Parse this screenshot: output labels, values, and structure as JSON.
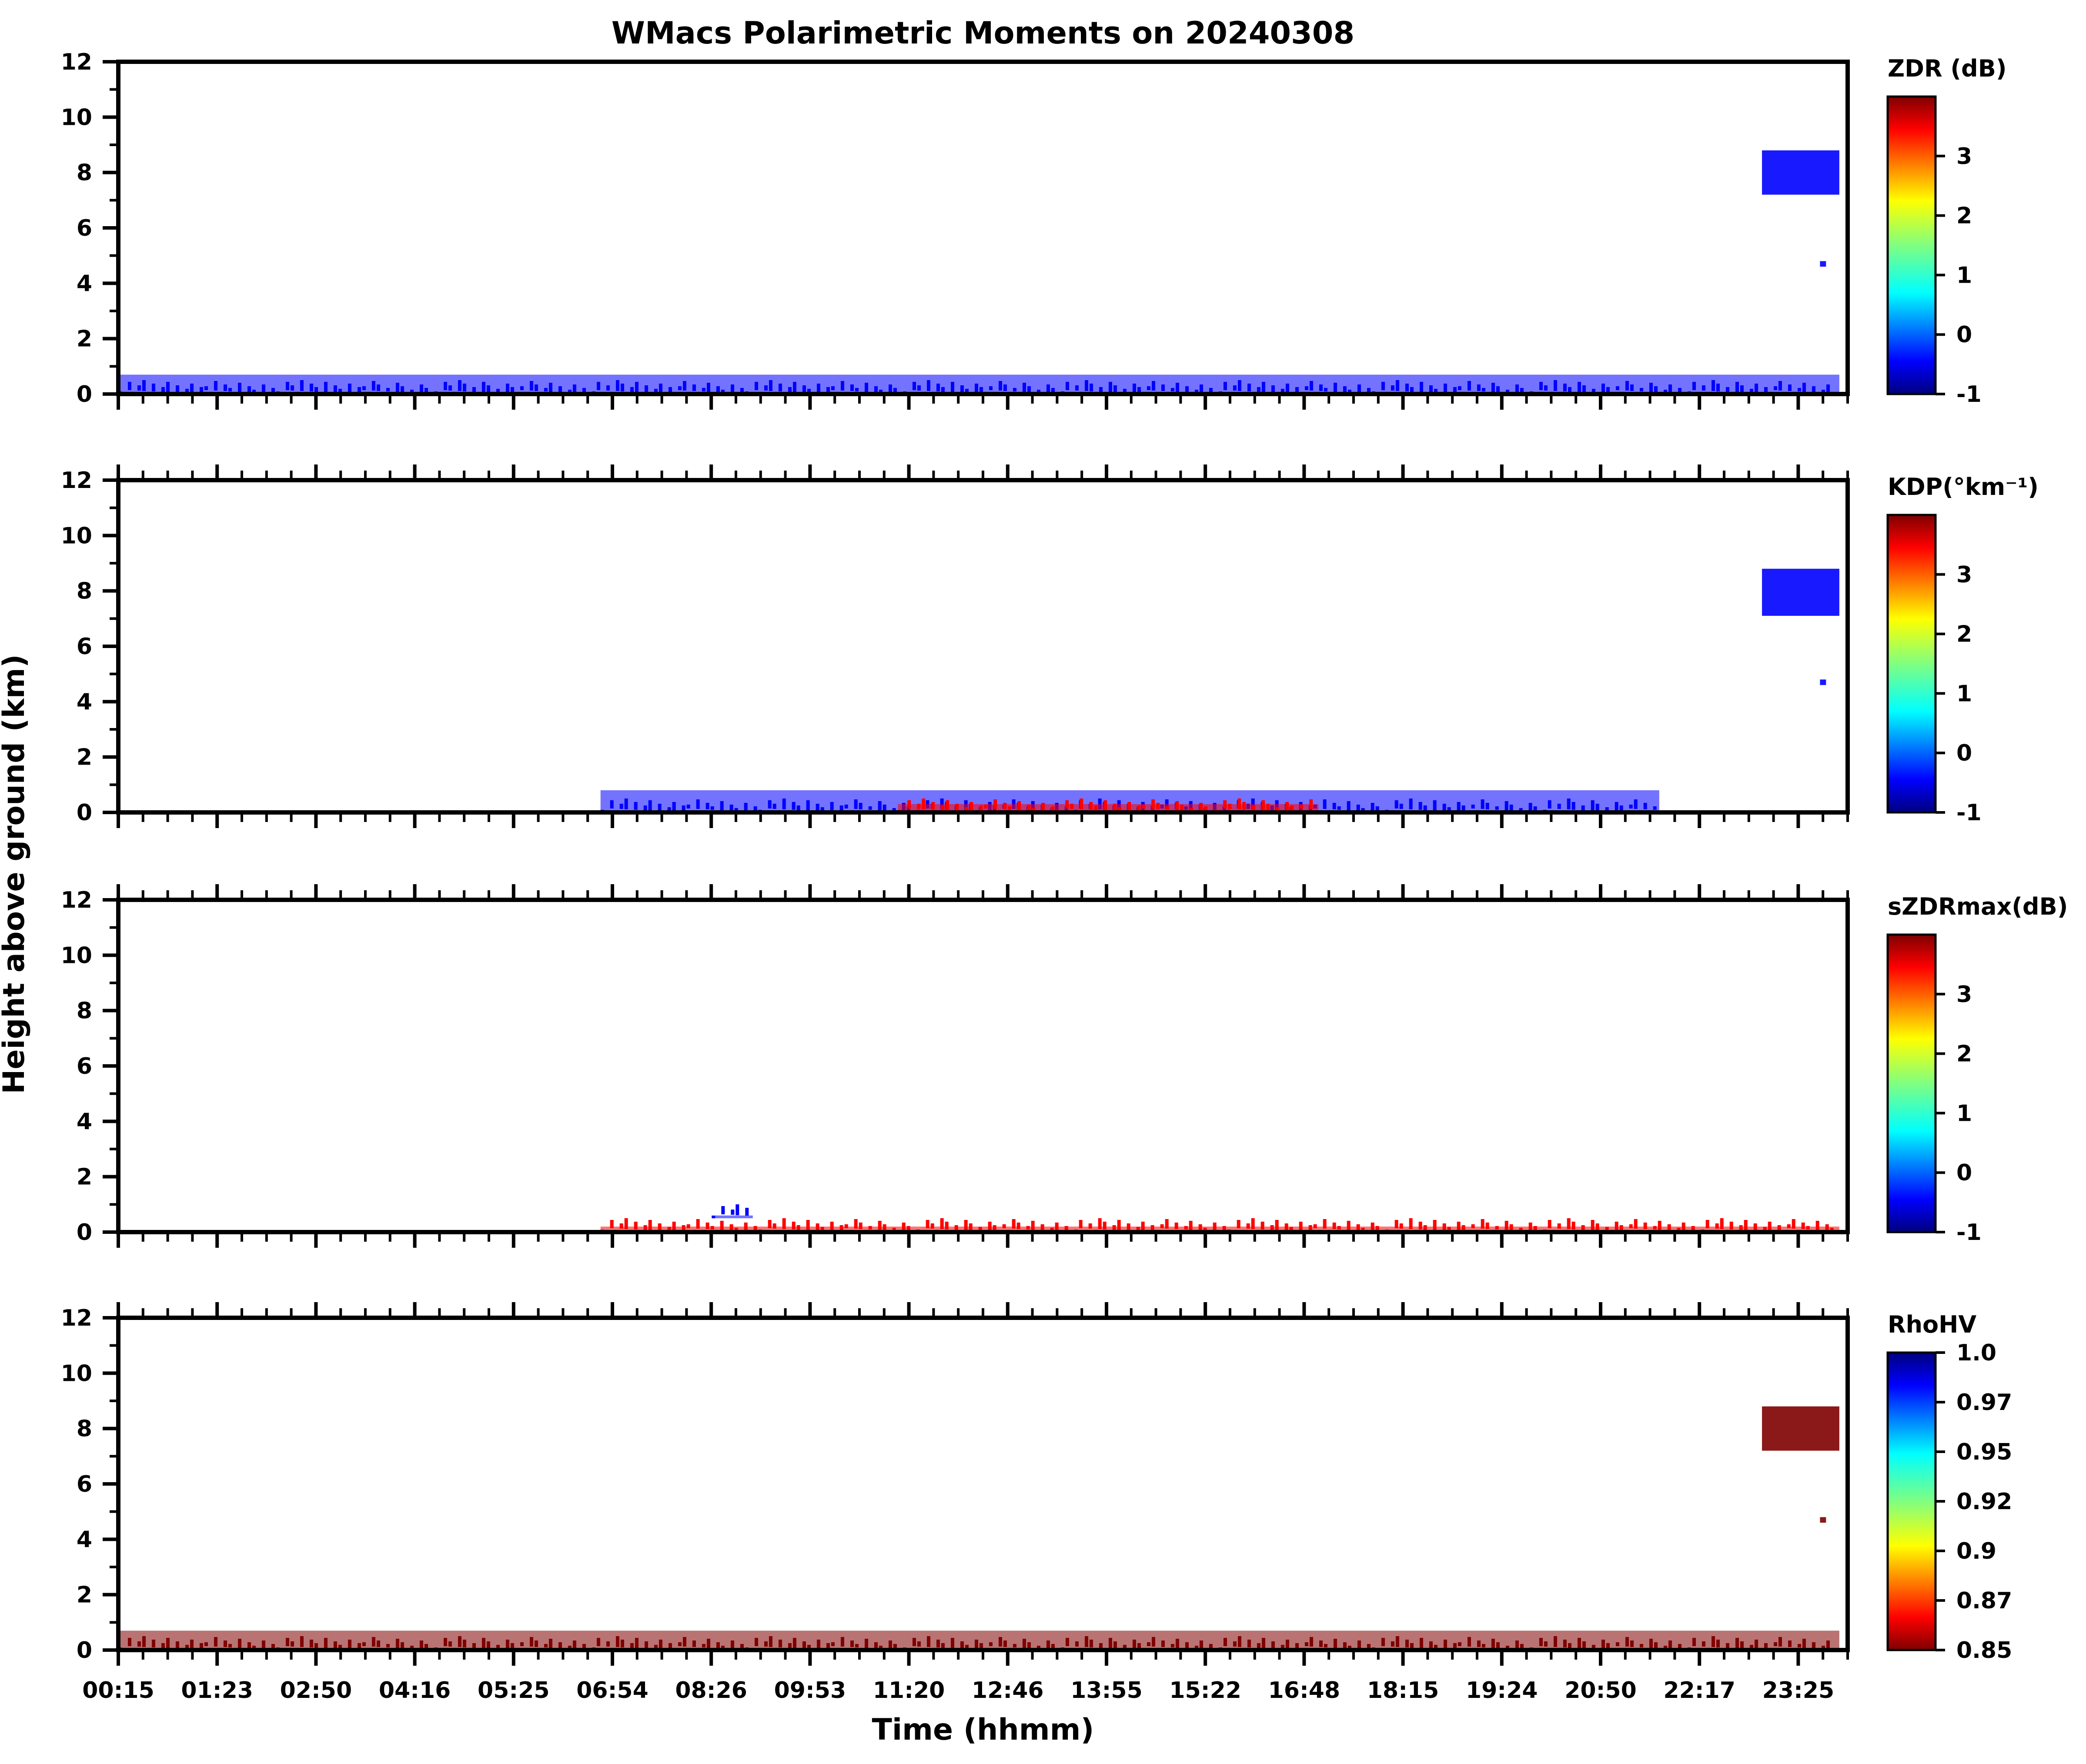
{
  "chart_data": {
    "type": "heatmap",
    "title": "WMacs Polarimetric Moments on 20240308",
    "xlabel": "Time (hhmm)",
    "ylabel": "Height above ground (km)",
    "x_tick_labels": [
      "00:15",
      "01:23",
      "02:50",
      "04:16",
      "05:25",
      "06:54",
      "08:26",
      "09:53",
      "11:20",
      "12:46",
      "13:55",
      "15:22",
      "16:48",
      "18:15",
      "19:24",
      "20:50",
      "22:17",
      "23:25"
    ],
    "ylim": [
      0,
      12
    ],
    "y_ticks": [
      0,
      2,
      4,
      6,
      8,
      10,
      12
    ],
    "panels": [
      {
        "name": "zdr",
        "colorbar_label": "ZDR (dB)",
        "colorbar_range": [
          -1,
          4
        ],
        "colorbar_ticks": [
          "-1",
          "0",
          "1",
          "2",
          "3"
        ],
        "colormap": "jet",
        "dominant_color": "#0a50ff",
        "features": [
          {
            "time_range": [
              "22:55",
              "23:59"
            ],
            "height_km": [
              7.2,
              8.8
            ],
            "value": -0.3
          },
          {
            "time_range": [
              "23:43",
              "23:48"
            ],
            "height_km": [
              4.6,
              4.8
            ],
            "value": -0.3
          },
          {
            "time_range": [
              "00:15",
              "23:59"
            ],
            "height_km": [
              0.0,
              0.7
            ],
            "value": -0.3
          }
        ]
      },
      {
        "name": "kdp",
        "colorbar_label": "KDP(°km⁻¹)",
        "colorbar_range": [
          -1,
          4
        ],
        "colorbar_ticks": [
          "-1",
          "0",
          "1",
          "2",
          "3"
        ],
        "colormap": "jet",
        "dominant_color": "#0a50ff",
        "features": [
          {
            "time_range": [
              "22:55",
              "23:59"
            ],
            "height_km": [
              7.1,
              8.8
            ],
            "value": -0.3
          },
          {
            "time_range": [
              "23:43",
              "23:48"
            ],
            "height_km": [
              4.6,
              4.8
            ],
            "value": -0.3
          },
          {
            "time_range": [
              "06:54",
              "21:30"
            ],
            "height_km": [
              0.0,
              0.8
            ],
            "value": -0.3
          },
          {
            "time_range": [
              "11:00",
              "16:48"
            ],
            "height_km": [
              0.0,
              0.3
            ],
            "value": 3.5
          }
        ]
      },
      {
        "name": "szdrmax",
        "colorbar_label": "sZDRmax(dB)",
        "colorbar_range": [
          -1,
          4
        ],
        "colorbar_ticks": [
          "-1",
          "0",
          "1",
          "2",
          "3"
        ],
        "colormap": "jet",
        "dominant_color": "#0a50ff",
        "features": [
          {
            "time_range": [
              "08:26",
              "09:00"
            ],
            "height_km": [
              0.5,
              0.6
            ],
            "value": -0.3
          },
          {
            "time_range": [
              "06:54",
              "23:59"
            ],
            "height_km": [
              0.0,
              0.2
            ],
            "value": 3.5
          }
        ]
      },
      {
        "name": "rhohv",
        "colorbar_label": "RhoHV",
        "colorbar_range": [
          0.85,
          1.0
        ],
        "colorbar_ticks": [
          "0.85",
          "0.87",
          "0.9",
          "0.92",
          "0.95",
          "0.97",
          "1.0"
        ],
        "colormap": "jet_r",
        "dominant_color": "#800000",
        "features": [
          {
            "time_range": [
              "22:55",
              "23:59"
            ],
            "height_km": [
              7.2,
              8.8
            ],
            "value": 0.85
          },
          {
            "time_range": [
              "23:43",
              "23:48"
            ],
            "height_km": [
              4.6,
              4.8
            ],
            "value": 0.85
          },
          {
            "time_range": [
              "00:15",
              "23:59"
            ],
            "height_km": [
              0.0,
              0.7
            ],
            "value": 0.85
          }
        ]
      }
    ]
  },
  "colors": {
    "jet": [
      "#00007f",
      "#0000ff",
      "#0080ff",
      "#00ffff",
      "#80ff80",
      "#ffff00",
      "#ff8000",
      "#ff0000",
      "#7f0000"
    ],
    "axis": "#000000"
  }
}
